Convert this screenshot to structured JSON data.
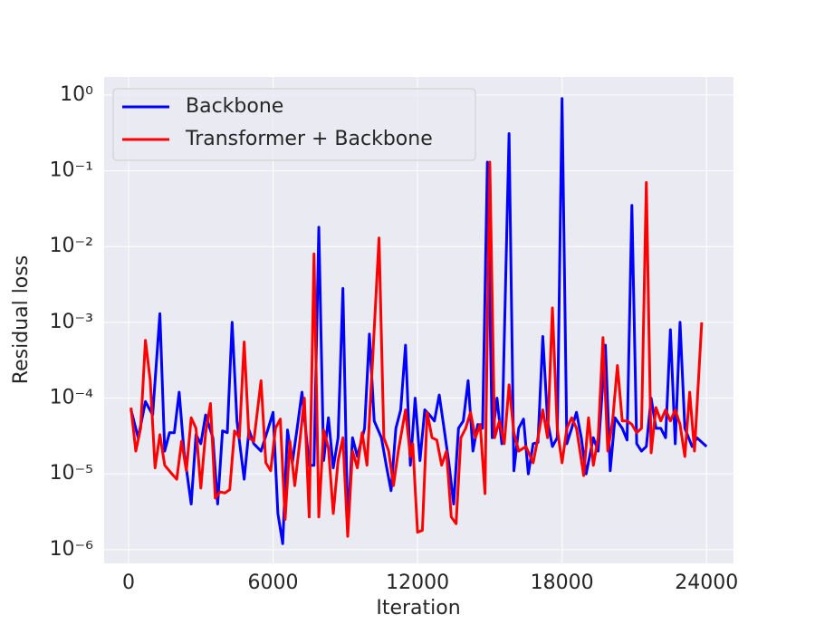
{
  "chart_data": {
    "type": "line",
    "xlabel": "Iteration",
    "ylabel": "Residual loss",
    "xlim": [
      -1015,
      25120
    ],
    "ylim": [
      6.6e-07,
      1.73
    ],
    "log_y": true,
    "grid": true,
    "legend": "upper-left",
    "xticks": [
      0,
      6000,
      12000,
      18000,
      24000
    ],
    "yticks": [
      {
        "value": 1,
        "label": "10⁰"
      },
      {
        "value": 0.1,
        "label": "10⁻¹"
      },
      {
        "value": 0.01,
        "label": "10⁻²"
      },
      {
        "value": 0.001,
        "label": "10⁻³"
      },
      {
        "value": 0.0001,
        "label": "10⁻⁴"
      },
      {
        "value": 1e-05,
        "label": "10⁻⁵"
      },
      {
        "value": 1e-06,
        "label": "10⁻⁶"
      }
    ],
    "series": [
      {
        "name": "Backbone",
        "color": "#0000ff",
        "x": [
          100,
          400,
          700,
          1000,
          1300,
          1500,
          1700,
          1900,
          2100,
          2300,
          2600,
          2800,
          3000,
          3200,
          3500,
          3700,
          3900,
          4100,
          4300,
          4500,
          4800,
          5000,
          5200,
          5500,
          5800,
          6000,
          6200,
          6400,
          6600,
          6800,
          7000,
          7200,
          7500,
          7700,
          7900,
          8100,
          8300,
          8500,
          8700,
          8900,
          9100,
          9300,
          9500,
          9800,
          10000,
          10200,
          10500,
          10700,
          10900,
          11100,
          11300,
          11500,
          11700,
          11900,
          12100,
          12300,
          12500,
          12700,
          12900,
          13100,
          13300,
          13500,
          13700,
          13900,
          14100,
          14300,
          14500,
          14700,
          14900,
          15100,
          15300,
          15500,
          15800,
          16000,
          16200,
          16400,
          16600,
          16800,
          17000,
          17200,
          17400,
          17600,
          17800,
          18000,
          18200,
          18400,
          18600,
          18800,
          19000,
          19300,
          19500,
          19800,
          20000,
          20200,
          20500,
          20700,
          20900,
          21100,
          21300,
          21500,
          21700,
          21900,
          22100,
          22300,
          22500,
          22700,
          22900,
          23100,
          23400,
          23600,
          24000
        ],
        "values": [
          7e-05,
          3e-05,
          9e-05,
          6e-05,
          0.0013,
          2e-05,
          3.5e-05,
          3.5e-05,
          0.00012,
          2e-05,
          4e-06,
          3.3e-05,
          2.5e-05,
          6e-05,
          3e-05,
          4e-06,
          3.7e-05,
          3.5e-05,
          0.001,
          5e-05,
          8.5e-06,
          3.8e-05,
          2.5e-05,
          2e-05,
          4e-05,
          6.5e-05,
          3e-06,
          1.2e-06,
          3.8e-05,
          1.4e-05,
          4e-05,
          0.00012,
          1.3e-05,
          1.3e-05,
          0.018,
          1.5e-05,
          5.5e-05,
          1.2e-05,
          3e-05,
          0.0028,
          2e-06,
          3e-05,
          1.7e-05,
          4e-05,
          0.0007,
          5e-05,
          3e-05,
          1.3e-05,
          6e-06,
          4e-05,
          7e-05,
          0.0005,
          1.3e-05,
          0.0001,
          1.5e-05,
          7e-05,
          6e-05,
          5e-05,
          0.00011,
          4e-05,
          1.4e-05,
          4e-06,
          4e-05,
          5e-05,
          0.00017,
          2e-05,
          4.5e-05,
          4e-05,
          0.13,
          3e-05,
          0.0001,
          2.5e-05,
          0.31,
          1.1e-05,
          4e-05,
          5.3e-05,
          1e-05,
          2.5e-05,
          2.6e-05,
          0.00065,
          5e-05,
          2.3e-05,
          3e-05,
          0.9,
          2.5e-05,
          4e-05,
          6.5e-05,
          3e-05,
          1e-05,
          3e-05,
          2e-05,
          0.0005,
          1.1e-05,
          5.5e-05,
          4e-05,
          2.8e-05,
          0.035,
          2.5e-05,
          2e-05,
          2.3e-05,
          0.0001,
          4e-05,
          4e-05,
          3e-05,
          0.0008,
          2.5e-05,
          0.001,
          4e-05,
          2.3e-05,
          3e-05,
          2.3e-05
        ]
      },
      {
        "name": "Transformer + Backbone",
        "color": "#ff0000",
        "x": [
          100,
          300,
          500,
          700,
          900,
          1100,
          1300,
          1500,
          1800,
          2000,
          2200,
          2400,
          2600,
          2800,
          3000,
          3200,
          3400,
          3600,
          3800,
          4000,
          4200,
          4400,
          4600,
          4800,
          5000,
          5200,
          5500,
          5700,
          5900,
          6100,
          6300,
          6500,
          6700,
          6900,
          7100,
          7300,
          7500,
          7700,
          7900,
          8100,
          8300,
          8500,
          8700,
          8900,
          9100,
          9300,
          9500,
          9700,
          9900,
          10100,
          10400,
          10600,
          10800,
          11000,
          11200,
          11500,
          11700,
          11800,
          12000,
          12200,
          12400,
          12600,
          12800,
          13000,
          13200,
          13400,
          13600,
          13800,
          14000,
          14200,
          14400,
          14600,
          14800,
          15000,
          15200,
          15400,
          15600,
          15800,
          16000,
          16200,
          16500,
          16800,
          17000,
          17200,
          17400,
          17600,
          17800,
          18000,
          18200,
          18400,
          18600,
          18900,
          19100,
          19300,
          19500,
          19700,
          19900,
          20100,
          20300,
          20500,
          20700,
          20900,
          21100,
          21300,
          21500,
          21700,
          21900,
          22100,
          22300,
          22500,
          22700,
          22900,
          23100,
          23300,
          23500,
          23800
        ],
        "values": [
          7.5e-05,
          2e-05,
          4e-05,
          0.00058,
          0.00017,
          1.2e-05,
          3.3e-05,
          1.3e-05,
          1e-05,
          8.5e-06,
          2.7e-05,
          1.1e-05,
          5.5e-05,
          4e-05,
          6.5e-06,
          3.5e-05,
          8.5e-05,
          4.8e-06,
          5.8e-06,
          5.6e-06,
          6.2e-06,
          3.7e-05,
          3e-05,
          0.00055,
          3e-05,
          2.7e-05,
          0.00017,
          1.4e-05,
          1.1e-05,
          4e-05,
          5.3e-05,
          2.5e-06,
          2.7e-05,
          7e-06,
          2.5e-05,
          0.0001,
          2.7e-06,
          0.008,
          2.7e-06,
          3.8e-05,
          2.2e-05,
          3e-06,
          1.5e-05,
          3e-05,
          1.5e-06,
          2e-05,
          1.2e-05,
          3.5e-05,
          1.3e-05,
          0.0002,
          0.013,
          3e-05,
          2e-05,
          7e-06,
          2e-05,
          7e-05,
          1.7e-05,
          2.5e-05,
          1.7e-06,
          1.8e-06,
          6.5e-05,
          3e-05,
          2.8e-05,
          1.3e-05,
          2e-05,
          2.7e-06,
          2.2e-06,
          3e-05,
          4e-05,
          6.5e-05,
          3e-05,
          4.5e-05,
          5.5e-06,
          0.13,
          3e-05,
          5e-05,
          2.5e-05,
          0.00015,
          3.5e-05,
          2e-05,
          2.3e-05,
          1.4e-05,
          3e-05,
          7e-05,
          3e-05,
          0.00155,
          4e-05,
          1.4e-05,
          4e-05,
          5.5e-05,
          4e-05,
          9.5e-06,
          5.5e-05,
          1.3e-05,
          3e-05,
          0.00063,
          2e-05,
          5e-05,
          0.00027,
          5e-05,
          5e-05,
          4.5e-05,
          3.5e-05,
          4e-05,
          0.07,
          1.9e-05,
          7.5e-05,
          5e-05,
          7e-05,
          5e-05,
          7e-05,
          4.5e-05,
          1.7e-05,
          0.00012,
          2e-05,
          0.001
        ]
      }
    ]
  }
}
